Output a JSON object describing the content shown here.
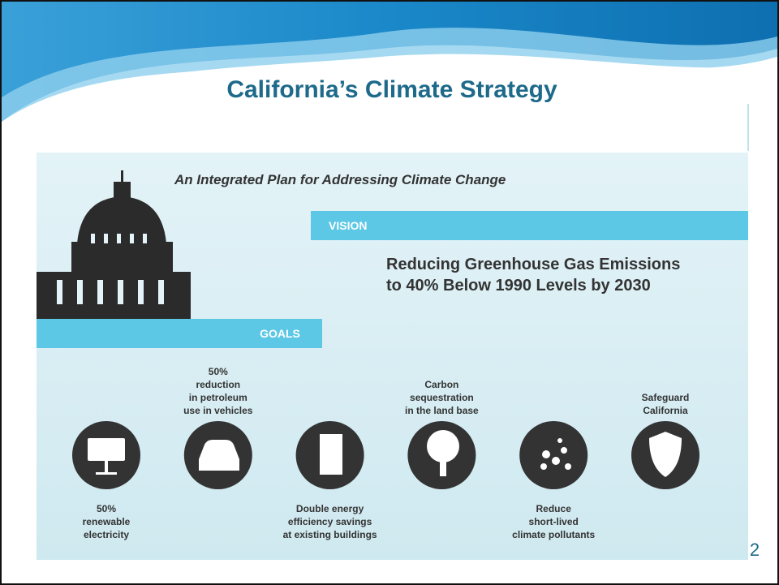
{
  "title": "California’s Climate Strategy",
  "infographic": {
    "subtitle": "An Integrated Plan for Addressing Climate Change",
    "vision": {
      "label": "VISION",
      "lines": [
        "Reducing Greenhouse Gas Emissions",
        "to 40% Below 1990 Levels by 2030"
      ]
    },
    "goals_label": "GOALS",
    "goals": [
      {
        "lines": [
          "50%",
          "renewable",
          "electricity"
        ]
      },
      {
        "lines": [
          "50%",
          "reduction",
          "in petroleum",
          "use in vehicles"
        ]
      },
      {
        "lines": [
          "Double energy",
          "efficiency savings",
          "at existing buildings"
        ]
      },
      {
        "lines": [
          "Carbon",
          "sequestration",
          "in the land base"
        ]
      },
      {
        "lines": [
          "Reduce",
          "short-lived",
          "climate pollutants"
        ]
      },
      {
        "lines": [
          "Safeguard",
          "California"
        ]
      }
    ]
  },
  "page_number": "2"
}
